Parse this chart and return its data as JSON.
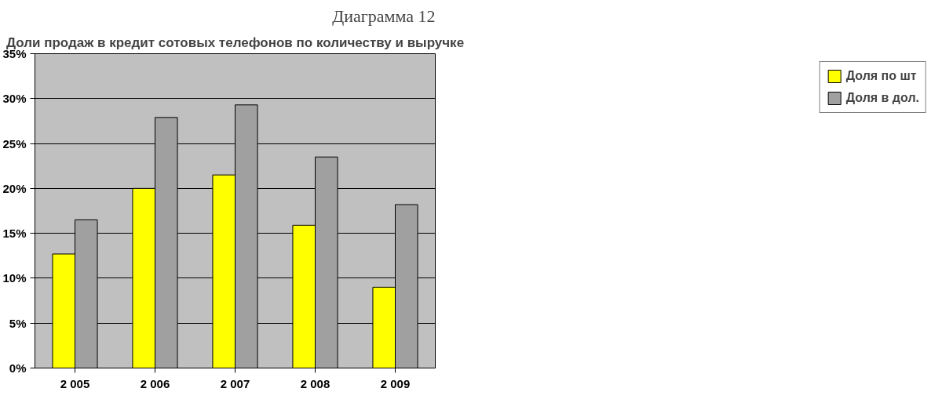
{
  "chart_data": {
    "type": "bar",
    "title": "Доли продаж в кредит сотовых телефонов по количеству и выручке",
    "annotations": [
      "Диаграмма 12"
    ],
    "categories": [
      "2 005",
      "2 006",
      "2 007",
      "2 008",
      "2 009"
    ],
    "series": [
      {
        "name": "Доля по шт",
        "color": "#ffff00",
        "values": [
          12.7,
          20.0,
          21.5,
          15.9,
          9.0
        ]
      },
      {
        "name": "Доля в дол.",
        "color": "#a0a0a0",
        "values": [
          16.5,
          27.9,
          29.3,
          23.5,
          18.2
        ]
      }
    ],
    "ylim": [
      0,
      35
    ],
    "yticks": [
      {
        "value": 0,
        "label": "0%"
      },
      {
        "value": 5,
        "label": "5%"
      },
      {
        "value": 10,
        "label": "10%"
      },
      {
        "value": 15,
        "label": "15%"
      },
      {
        "value": 20,
        "label": "20%"
      },
      {
        "value": 25,
        "label": "25%"
      },
      {
        "value": 30,
        "label": "30%"
      },
      {
        "value": 35,
        "label": "35%"
      }
    ],
    "grid": "y",
    "legend": "right"
  }
}
